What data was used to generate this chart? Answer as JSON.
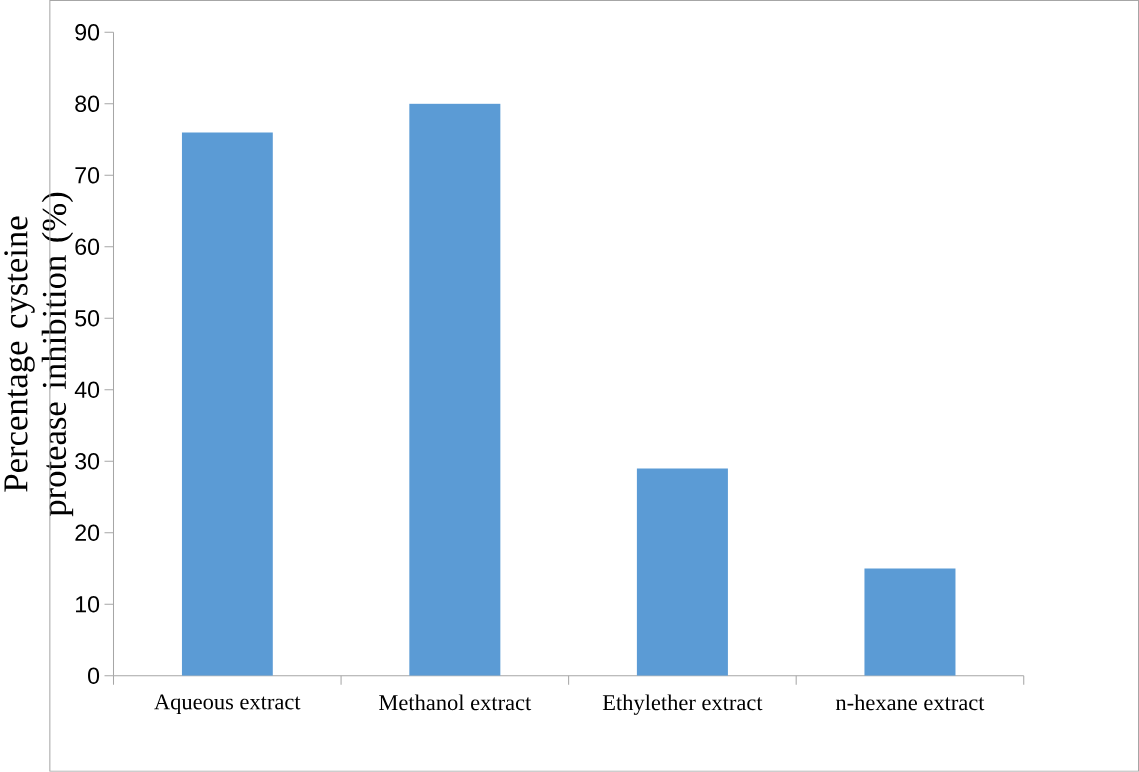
{
  "chart_data": {
    "type": "bar",
    "ylabel": "Percentage cysteine protease inhibition (%)",
    "categories": [
      "Aqueous extract",
      "Methanol extract",
      "Ethylether extract",
      "n-hexane extract"
    ],
    "values": [
      76,
      80,
      29,
      15
    ],
    "color": "#5b9bd5",
    "ylim": [
      0,
      90
    ],
    "yticks": [
      0,
      10,
      20,
      30,
      40,
      50,
      60,
      70,
      80,
      90
    ],
    "grid": false
  }
}
